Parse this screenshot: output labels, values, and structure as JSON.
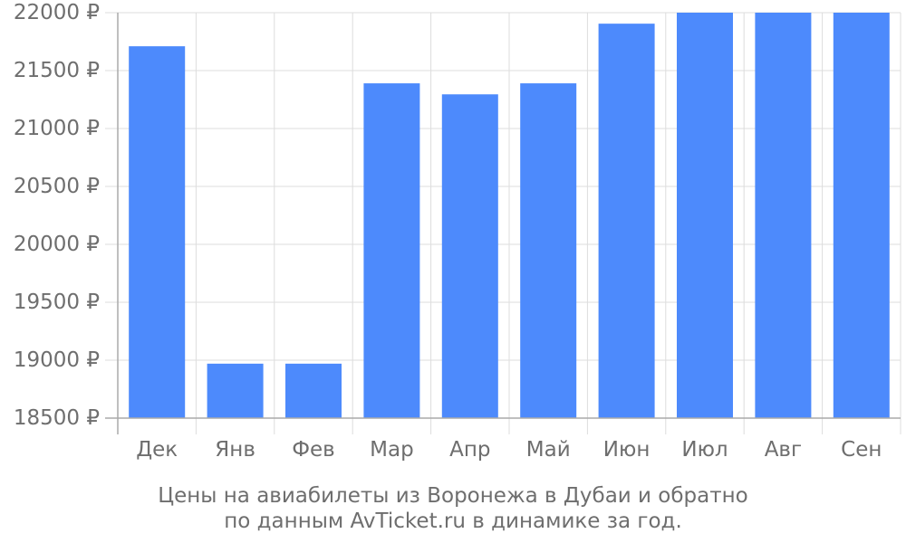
{
  "chart_data": {
    "type": "bar",
    "categories": [
      "Дек",
      "Янв",
      "Фев",
      "Мар",
      "Апр",
      "Май",
      "Июн",
      "Июл",
      "Авг",
      "Сен"
    ],
    "values": [
      21710,
      18970,
      18970,
      21390,
      21295,
      21390,
      21905,
      22000,
      22000,
      22000
    ],
    "ylim": [
      18500,
      22000
    ],
    "yticks": [
      18500,
      19000,
      19500,
      20000,
      20500,
      21000,
      21500,
      22000
    ],
    "ytick_suffix": " ₽",
    "grid": true,
    "bar_color": "#4d8afc",
    "grid_color": "#dddddd",
    "axis_color": "#aaaaaa",
    "text_color": "#6e6e6e"
  },
  "caption": {
    "line1": "Цены на авиабилеты из Воронежа в Дубаи и обратно",
    "line2": "по данным AvTicket.ru в динамике за год."
  }
}
